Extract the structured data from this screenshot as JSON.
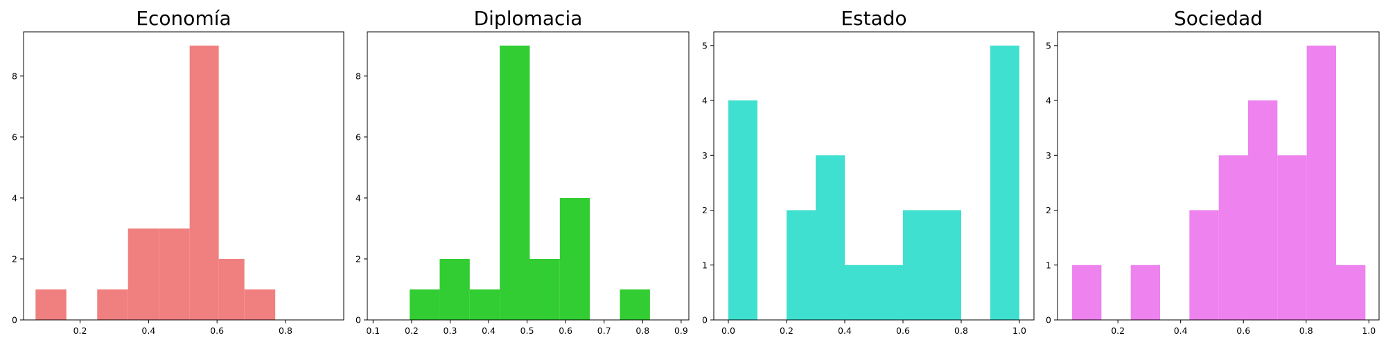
{
  "chart_data": [
    {
      "type": "bar",
      "title": "Economía",
      "xlabel": "",
      "ylabel": "",
      "color": "#F08080",
      "xlim": [
        0.035,
        0.97
      ],
      "ylim": [
        0,
        9.45
      ],
      "xticks": [
        0.2,
        0.4,
        0.6,
        0.8
      ],
      "xtick_labels": [
        "0.2",
        "0.4",
        "0.6",
        "0.8"
      ],
      "yticks": [
        0,
        2,
        4,
        6,
        8
      ],
      "ytick_labels": [
        "0",
        "2",
        "4",
        "6",
        "8"
      ],
      "bins": [
        {
          "x0": 0.07,
          "x1": 0.16,
          "count": 1
        },
        {
          "x0": 0.16,
          "x1": 0.25,
          "count": 0
        },
        {
          "x0": 0.25,
          "x1": 0.34,
          "count": 1
        },
        {
          "x0": 0.34,
          "x1": 0.43,
          "count": 3
        },
        {
          "x0": 0.43,
          "x1": 0.52,
          "count": 3
        },
        {
          "x0": 0.52,
          "x1": 0.605,
          "count": 9
        },
        {
          "x0": 0.605,
          "x1": 0.68,
          "count": 2
        },
        {
          "x0": 0.68,
          "x1": 0.77,
          "count": 1
        }
      ]
    },
    {
      "type": "bar",
      "title": "Diplomacia",
      "xlabel": "",
      "ylabel": "",
      "color": "#32CD32",
      "xlim": [
        0.085,
        0.92
      ],
      "ylim": [
        0,
        9.45
      ],
      "xticks": [
        0.1,
        0.2,
        0.3,
        0.4,
        0.5,
        0.6,
        0.7,
        0.8,
        0.9
      ],
      "xtick_labels": [
        "0.1",
        "0.2",
        "0.3",
        "0.4",
        "0.5",
        "0.6",
        "0.7",
        "0.8",
        "0.9"
      ],
      "yticks": [
        0,
        2,
        4,
        6,
        8
      ],
      "ytick_labels": [
        "0",
        "2",
        "4",
        "6",
        "8"
      ],
      "bins": [
        {
          "x0": 0.195,
          "x1": 0.273,
          "count": 1
        },
        {
          "x0": 0.273,
          "x1": 0.351,
          "count": 2
        },
        {
          "x0": 0.351,
          "x1": 0.429,
          "count": 1
        },
        {
          "x0": 0.429,
          "x1": 0.507,
          "count": 9
        },
        {
          "x0": 0.507,
          "x1": 0.585,
          "count": 2
        },
        {
          "x0": 0.585,
          "x1": 0.663,
          "count": 4
        },
        {
          "x0": 0.663,
          "x1": 0.741,
          "count": 0
        },
        {
          "x0": 0.741,
          "x1": 0.819,
          "count": 1
        }
      ]
    },
    {
      "type": "bar",
      "title": "Estado",
      "xlabel": "",
      "ylabel": "",
      "color": "#40E0D0",
      "xlim": [
        -0.05,
        1.05
      ],
      "ylim": [
        0,
        5.25
      ],
      "xticks": [
        0.0,
        0.2,
        0.4,
        0.6,
        0.8,
        1.0
      ],
      "xtick_labels": [
        "0.0",
        "0.2",
        "0.4",
        "0.6",
        "0.8",
        "1.0"
      ],
      "yticks": [
        0,
        1,
        2,
        3,
        4,
        5
      ],
      "ytick_labels": [
        "0",
        "1",
        "2",
        "3",
        "4",
        "5"
      ],
      "bins": [
        {
          "x0": 0.0,
          "x1": 0.1,
          "count": 4
        },
        {
          "x0": 0.1,
          "x1": 0.2,
          "count": 0
        },
        {
          "x0": 0.2,
          "x1": 0.3,
          "count": 2
        },
        {
          "x0": 0.3,
          "x1": 0.4,
          "count": 3
        },
        {
          "x0": 0.4,
          "x1": 0.5,
          "count": 1
        },
        {
          "x0": 0.5,
          "x1": 0.6,
          "count": 1
        },
        {
          "x0": 0.6,
          "x1": 0.7,
          "count": 2
        },
        {
          "x0": 0.7,
          "x1": 0.8,
          "count": 2
        },
        {
          "x0": 0.8,
          "x1": 0.9,
          "count": 0
        },
        {
          "x0": 0.9,
          "x1": 1.0,
          "count": 5
        }
      ]
    },
    {
      "type": "bar",
      "title": "Sociedad",
      "xlabel": "",
      "ylabel": "",
      "color": "#EE82EE",
      "xlim": [
        0.0075,
        1.0325
      ],
      "ylim": [
        0,
        5.25
      ],
      "xticks": [
        0.2,
        0.4,
        0.6,
        0.8,
        1.0
      ],
      "xtick_labels": [
        "0.2",
        "0.4",
        "0.6",
        "0.8",
        "1.0"
      ],
      "yticks": [
        0,
        1,
        2,
        3,
        4,
        5
      ],
      "ytick_labels": [
        "0",
        "1",
        "2",
        "3",
        "4",
        "5"
      ],
      "bins": [
        {
          "x0": 0.054,
          "x1": 0.1475,
          "count": 1
        },
        {
          "x0": 0.1475,
          "x1": 0.241,
          "count": 0
        },
        {
          "x0": 0.241,
          "x1": 0.3345,
          "count": 1
        },
        {
          "x0": 0.3345,
          "x1": 0.428,
          "count": 0
        },
        {
          "x0": 0.428,
          "x1": 0.5215,
          "count": 2
        },
        {
          "x0": 0.5215,
          "x1": 0.615,
          "count": 3
        },
        {
          "x0": 0.615,
          "x1": 0.7085,
          "count": 4
        },
        {
          "x0": 0.7085,
          "x1": 0.802,
          "count": 3
        },
        {
          "x0": 0.802,
          "x1": 0.8955,
          "count": 5
        },
        {
          "x0": 0.8955,
          "x1": 0.989,
          "count": 1
        }
      ]
    }
  ]
}
